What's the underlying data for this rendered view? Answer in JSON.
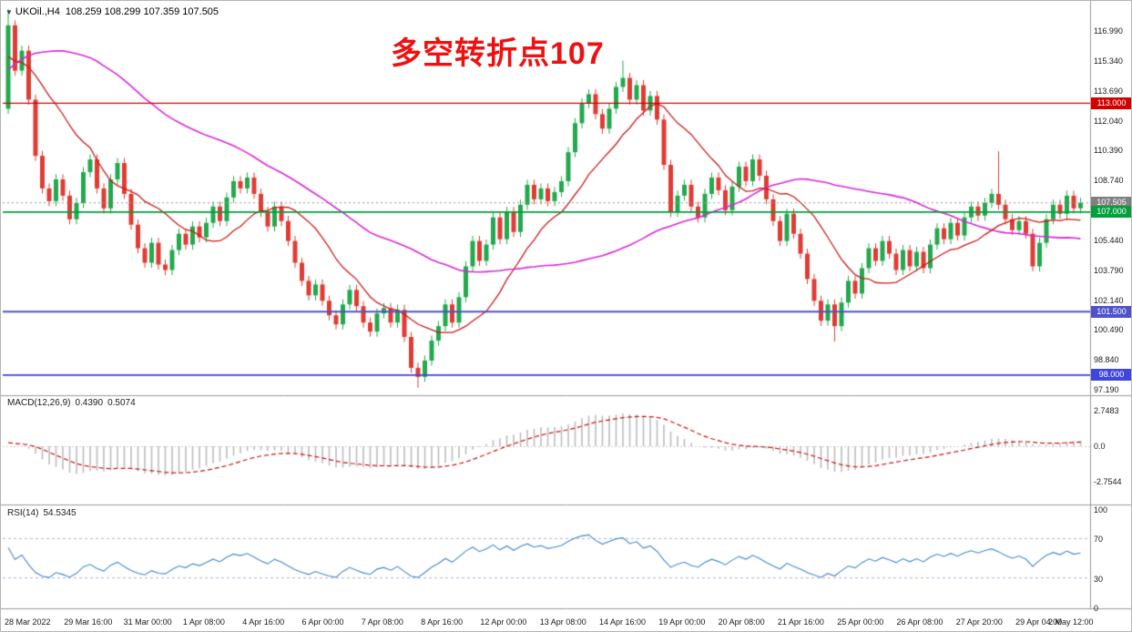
{
  "window": {
    "symbol_title": "UKOil.,H4",
    "ohlc_values": "108.259 108.299 107.359 107.505"
  },
  "annotation": {
    "text": "多空转折点107",
    "color": "#ee1111"
  },
  "style": {
    "up_color": "#23a94e",
    "down_color": "#e03c34",
    "ma_fast_color": "#cc1a1a",
    "ma_slow_color": "#d928d9",
    "macd_hist_color": "#bdbdbd",
    "macd_signal_color": "#cc1111",
    "rsi_color": "#4488cc",
    "separator_color": "#9a9a9a",
    "rsi_level_color": "#b3b3d9"
  },
  "panels": {
    "macd": {
      "label_name": "MACD(12,26,9)",
      "value_main": "0.4390",
      "value_signal": "0.5074",
      "y_ticks": [
        "2.7483",
        "0.0",
        "-2.7544"
      ]
    },
    "rsi": {
      "label_name": "RSI(14)",
      "value": "54.5345",
      "y_ticks": [
        "100",
        "70",
        "30",
        "0"
      ],
      "levels": [
        70,
        30
      ]
    }
  },
  "chart_data": {
    "type": "candlestick",
    "title": "UKOil.,H4",
    "current_ohlc": {
      "open": 108.259,
      "high": 108.299,
      "low": 107.359,
      "close": 107.505
    },
    "ylim": [
      96.99,
      118.55
    ],
    "y_axis_ticks": [
      "116.990",
      "115.340",
      "113.690",
      "112.040",
      "110.390",
      "108.740",
      "105.440",
      "103.790",
      "102.140",
      "100.490",
      "98.840",
      "97.190"
    ],
    "x_labels": [
      "28 Mar 2022",
      "29 Mar 16:00",
      "31 Mar 00:00",
      "1 Apr 08:00",
      "4 Apr 16:00",
      "6 Apr 00:00",
      "7 Apr 08:00",
      "8 Apr 16:00",
      "12 Apr 00:00",
      "13 Apr 08:00",
      "14 Apr 16:00",
      "19 Apr 00:00",
      "20 Apr 08:00",
      "21 Apr 16:00",
      "25 Apr 00:00",
      "26 Apr 08:00",
      "27 Apr 20:00",
      "29 Apr 04:00",
      "2 May 12:00"
    ],
    "closes": [
      117.3,
      114.8,
      115.9,
      113.2,
      110.1,
      108.3,
      107.6,
      108.8,
      107.9,
      106.6,
      107.5,
      109.2,
      109.9,
      108.3,
      107.2,
      108.8,
      109.7,
      108.0,
      106.3,
      105.0,
      104.2,
      105.3,
      104.1,
      103.8,
      104.9,
      105.8,
      105.2,
      106.2,
      105.6,
      106.4,
      107.3,
      106.5,
      107.8,
      108.7,
      108.3,
      108.9,
      108.0,
      107.0,
      106.2,
      107.3,
      106.5,
      105.4,
      104.2,
      103.2,
      102.4,
      103.0,
      102.1,
      101.3,
      100.8,
      101.9,
      102.7,
      101.8,
      100.9,
      100.4,
      101.4,
      101.7,
      100.9,
      101.6,
      100.1,
      98.4,
      97.9,
      98.8,
      99.9,
      100.7,
      101.9,
      100.9,
      102.3,
      104.0,
      105.4,
      104.3,
      105.2,
      106.7,
      105.5,
      107.0,
      105.9,
      107.4,
      108.5,
      107.7,
      108.3,
      107.6,
      108.1,
      108.7,
      110.3,
      111.9,
      113.0,
      113.5,
      112.4,
      111.6,
      112.7,
      113.9,
      114.4,
      113.2,
      114.0,
      112.6,
      113.4,
      112.1,
      109.6,
      107.0,
      107.9,
      108.5,
      107.3,
      106.7,
      108.0,
      108.9,
      108.2,
      107.1,
      108.4,
      109.5,
      108.7,
      109.9,
      109.0,
      107.7,
      106.5,
      105.4,
      106.9,
      105.8,
      104.7,
      103.3,
      102.1,
      101.0,
      101.9,
      100.7,
      102.0,
      103.2,
      102.5,
      103.9,
      105.0,
      104.3,
      105.4,
      104.7,
      103.8,
      104.9,
      104.0,
      104.8,
      103.9,
      105.2,
      106.1,
      105.5,
      106.4,
      105.7,
      106.7,
      107.3,
      106.8,
      107.5,
      108.0,
      107.4,
      106.6,
      106.0,
      106.5,
      105.8,
      104.0,
      105.3,
      106.6,
      107.4,
      106.9,
      107.9,
      107.2,
      107.505
    ],
    "ma_warmup": [
      100,
      101,
      102,
      103,
      104,
      105,
      106,
      107,
      108,
      110,
      112,
      114,
      116,
      118,
      120,
      121,
      122,
      123,
      123,
      122,
      121,
      120,
      119,
      118,
      117,
      116,
      115.5,
      115,
      114.5,
      114,
      113.8,
      113.6,
      115,
      116.5,
      118,
      119,
      119.5,
      119,
      118,
      117,
      116.5,
      116,
      115.5,
      115.2,
      115,
      114.8,
      114.6,
      114.4,
      114.2,
      114
    ],
    "wick_overrides": [
      {
        "i": 0,
        "h": 118.2
      },
      {
        "i": 60,
        "l": 97.3
      },
      {
        "i": 90,
        "h": 115.35
      },
      {
        "i": 121,
        "l": 99.85
      },
      {
        "i": 145,
        "h": 110.35
      }
    ],
    "moving_averages": [
      {
        "period": 13,
        "color": "#cc1a1a"
      },
      {
        "period": 50,
        "color": "#d928d9"
      }
    ],
    "horizontal_levels": [
      {
        "price": 113.0,
        "color": "#d40000",
        "style": "solid"
      },
      {
        "price": 107.0,
        "color": "#00a13a",
        "style": "solid"
      },
      {
        "price": 101.5,
        "color": "#4f52c8",
        "style": "solid"
      },
      {
        "price": 98.0,
        "color": "#3f46dd",
        "style": "solid"
      },
      {
        "price": 107.505,
        "color": "#909090",
        "style": "dotted"
      }
    ],
    "price_tags": [
      {
        "label": "113.000",
        "value": 113.0,
        "color": "#d40000"
      },
      {
        "label": "107.505",
        "value": 107.505,
        "color": "#808080"
      },
      {
        "label": "107.000",
        "value": 107.0,
        "color": "#00a13a"
      },
      {
        "label": "101.500",
        "value": 101.5,
        "color": "#4f52c8"
      },
      {
        "label": "98.000",
        "value": 98.0,
        "color": "#3f46dd"
      }
    ],
    "indicators": [
      {
        "name": "MACD",
        "params": [
          12,
          26,
          9
        ],
        "main": 0.439,
        "signal": 0.5074
      },
      {
        "name": "RSI",
        "params": [
          14
        ],
        "value": 54.5345
      }
    ]
  }
}
